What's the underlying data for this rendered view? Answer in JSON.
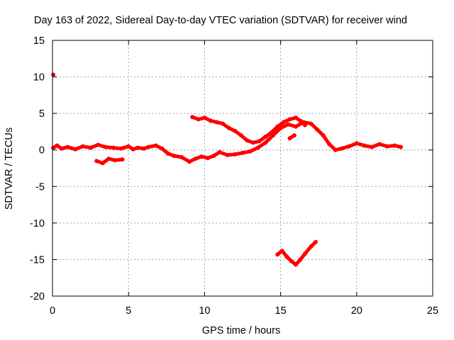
{
  "chart_data": {
    "type": "scatter",
    "title": "Day 163 of 2022, Sidereal Day-to-day VTEC variation (SDTVAR) for receiver wind",
    "xlabel": "GPS time / hours",
    "ylabel": "SDTVAR / TECUs",
    "xlim": [
      0,
      25
    ],
    "ylim": [
      -20,
      15
    ],
    "xticks": [
      0,
      5,
      10,
      15,
      20,
      25
    ],
    "yticks": [
      -20,
      -15,
      -10,
      -5,
      0,
      5,
      10,
      15
    ],
    "grid": true,
    "legend": "none",
    "series_color": "#ff0000",
    "series": [
      {
        "name": "main-track",
        "values": [
          [
            0.05,
            0.3
          ],
          [
            0.3,
            0.6
          ],
          [
            0.6,
            0.2
          ],
          [
            1.0,
            0.4
          ],
          [
            1.5,
            0.1
          ],
          [
            2.0,
            0.5
          ],
          [
            2.5,
            0.3
          ],
          [
            3.0,
            0.7
          ],
          [
            3.5,
            0.4
          ],
          [
            4.0,
            0.3
          ],
          [
            4.5,
            0.2
          ],
          [
            5.0,
            0.5
          ],
          [
            5.3,
            0.1
          ],
          [
            5.6,
            0.3
          ],
          [
            6.0,
            0.2
          ],
          [
            6.3,
            0.4
          ],
          [
            6.8,
            0.6
          ],
          [
            7.2,
            0.2
          ],
          [
            7.6,
            -0.5
          ],
          [
            8.0,
            -0.8
          ],
          [
            8.5,
            -1.0
          ],
          [
            9.0,
            -1.6
          ],
          [
            9.4,
            -1.2
          ],
          [
            9.8,
            -0.9
          ],
          [
            10.2,
            -1.1
          ],
          [
            10.6,
            -0.8
          ],
          [
            11.0,
            -0.3
          ],
          [
            11.5,
            -0.7
          ],
          [
            12.0,
            -0.6
          ],
          [
            12.5,
            -0.4
          ],
          [
            13.0,
            -0.2
          ],
          [
            13.5,
            0.3
          ],
          [
            14.0,
            1.0
          ],
          [
            14.5,
            2.0
          ],
          [
            15.0,
            3.0
          ],
          [
            15.5,
            3.5
          ],
          [
            16.0,
            3.2
          ],
          [
            16.5,
            3.8
          ],
          [
            17.0,
            3.6
          ],
          [
            17.4,
            2.8
          ],
          [
            17.8,
            2.0
          ],
          [
            18.2,
            0.8
          ],
          [
            18.6,
            0.0
          ],
          [
            19.0,
            0.2
          ],
          [
            19.5,
            0.5
          ],
          [
            20.0,
            0.9
          ],
          [
            20.5,
            0.6
          ],
          [
            21.0,
            0.4
          ],
          [
            21.5,
            0.8
          ],
          [
            22.0,
            0.5
          ],
          [
            22.5,
            0.6
          ],
          [
            22.9,
            0.4
          ]
        ]
      },
      {
        "name": "upper-track",
        "values": [
          [
            9.2,
            4.5
          ],
          [
            9.6,
            4.2
          ],
          [
            10.0,
            4.4
          ],
          [
            10.4,
            4.0
          ],
          [
            10.8,
            3.8
          ],
          [
            11.2,
            3.6
          ],
          [
            11.6,
            3.0
          ],
          [
            12.0,
            2.6
          ],
          [
            12.4,
            2.0
          ],
          [
            12.8,
            1.3
          ],
          [
            13.2,
            1.0
          ],
          [
            13.6,
            1.2
          ],
          [
            14.0,
            1.8
          ],
          [
            14.4,
            2.4
          ],
          [
            14.8,
            3.2
          ],
          [
            15.2,
            3.8
          ],
          [
            15.6,
            4.2
          ],
          [
            16.0,
            4.4
          ],
          [
            16.3,
            4.0
          ],
          [
            16.6,
            3.4
          ]
        ]
      },
      {
        "name": "lower-short-track",
        "values": [
          [
            2.9,
            -1.5
          ],
          [
            3.3,
            -1.8
          ],
          [
            3.7,
            -1.2
          ],
          [
            4.1,
            -1.4
          ],
          [
            4.6,
            -1.3
          ]
        ]
      },
      {
        "name": "outlier-track",
        "values": [
          [
            14.8,
            -14.3
          ],
          [
            15.1,
            -13.8
          ],
          [
            15.4,
            -14.6
          ],
          [
            15.7,
            -15.2
          ],
          [
            16.0,
            -15.7
          ],
          [
            16.3,
            -15.0
          ],
          [
            16.6,
            -14.2
          ],
          [
            17.0,
            -13.2
          ],
          [
            17.3,
            -12.6
          ]
        ]
      },
      {
        "name": "isolated-point",
        "values": [
          [
            0.05,
            10.3
          ]
        ]
      },
      {
        "name": "branch-point",
        "values": [
          [
            15.6,
            1.6
          ],
          [
            15.9,
            2.0
          ]
        ]
      }
    ]
  }
}
